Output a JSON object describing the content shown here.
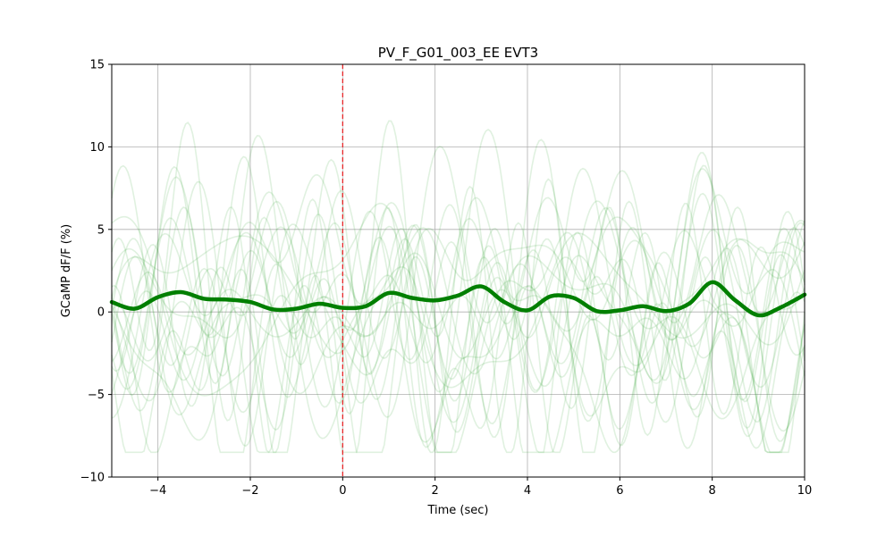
{
  "chart_data": {
    "type": "line",
    "title": "PV_F_G01_003_EE EVT3",
    "xlabel": "Time (sec)",
    "ylabel": "GCaMP dF/F (%)",
    "xlim": [
      -5,
      10
    ],
    "ylim": [
      -10,
      15
    ],
    "xticks": [
      -4,
      -2,
      0,
      2,
      4,
      6,
      8,
      10
    ],
    "xtick_labels": [
      "−4",
      "−2",
      "0",
      "2",
      "4",
      "6",
      "8",
      "10"
    ],
    "yticks": [
      -10,
      -5,
      0,
      5,
      10,
      15
    ],
    "ytick_labels": [
      "−10",
      "−5",
      "0",
      "5",
      "10",
      "15"
    ],
    "grid": true,
    "event_line": {
      "x": 0,
      "color": "#e8191c",
      "style": "dashed"
    },
    "colors": {
      "trials": "#2ca02c",
      "mean": "#007f00",
      "grid": "#b0b0b0",
      "event": "#e8191c"
    },
    "trial_count": 20,
    "series": [
      {
        "role": "mean",
        "x": [
          -5,
          -4.5,
          -4,
          -3.5,
          -3,
          -2.5,
          -2,
          -1.5,
          -1,
          -0.5,
          0,
          0.5,
          1,
          1.5,
          2,
          2.5,
          3,
          3.5,
          4,
          4.5,
          5,
          5.5,
          6,
          6.5,
          7,
          7.5,
          8,
          8.5,
          9,
          9.5,
          10
        ],
        "values": [
          0.6,
          0.2,
          0.9,
          1.2,
          0.8,
          0.75,
          0.6,
          0.15,
          0.2,
          0.5,
          0.25,
          0.35,
          1.15,
          0.85,
          0.7,
          1.0,
          1.55,
          0.6,
          0.1,
          0.95,
          0.85,
          0.05,
          0.1,
          0.35,
          0.05,
          0.5,
          1.8,
          0.7,
          -0.2,
          0.3,
          1.05
        ]
      }
    ]
  }
}
